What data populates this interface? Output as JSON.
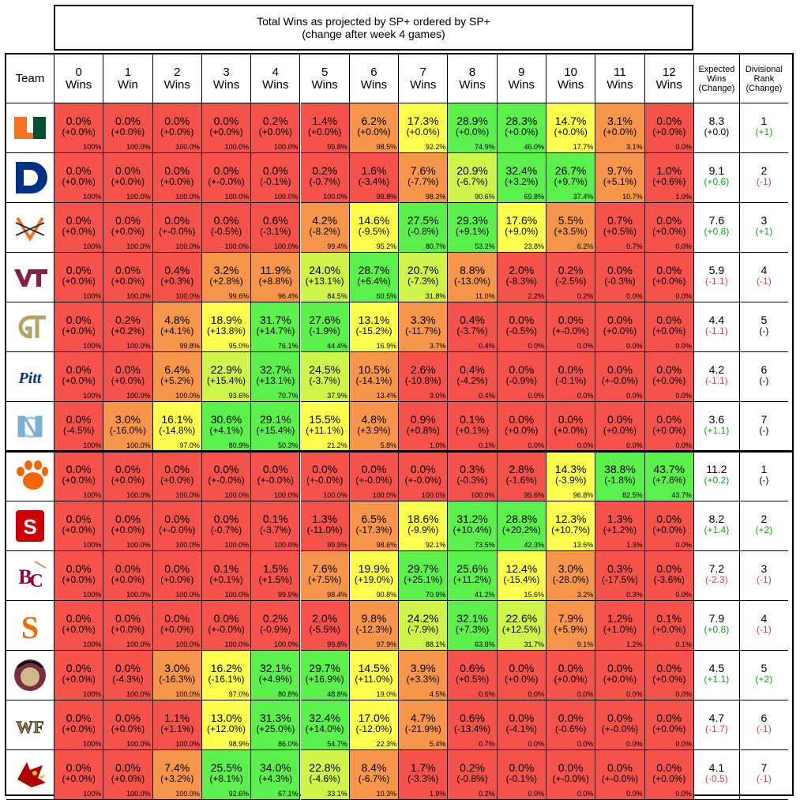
{
  "title": {
    "line1": "Total Wins as projected by SP+ ordered by SP+",
    "line2": "(change after week 4 games)"
  },
  "headers": {
    "team": "Team",
    "wins": [
      [
        "0",
        "Wins"
      ],
      [
        "1",
        "Win"
      ],
      [
        "2",
        "Wins"
      ],
      [
        "3",
        "Wins"
      ],
      [
        "4",
        "Wins"
      ],
      [
        "5",
        "Wins"
      ],
      [
        "6",
        "Wins"
      ],
      [
        "7",
        "Wins"
      ],
      [
        "8",
        "Wins"
      ],
      [
        "9",
        "Wins"
      ],
      [
        "10",
        "Wins"
      ],
      [
        "11",
        "Wins"
      ],
      [
        "12",
        "Wins"
      ]
    ],
    "expected": [
      "Expected",
      "Wins",
      "(Change)"
    ],
    "rank": [
      "Divisional",
      "Rank",
      "(Change)"
    ]
  },
  "colors": {
    "red": "#f4524b",
    "orange": "#f7964a",
    "yellow": "#ffff4d",
    "yellowgreen": "#cff54b",
    "green": "#5cf04d",
    "pos": "#1a9e1a",
    "neg": "#e04040"
  },
  "chart_data": {
    "type": "table",
    "title": "Total Wins as projected by SP+ ordered by SP+",
    "subtitle": "(change after week 4 games)",
    "columns": [
      "0",
      "1",
      "2",
      "3",
      "4",
      "5",
      "6",
      "7",
      "8",
      "9",
      "10",
      "11",
      "12"
    ],
    "rows": [
      {
        "team": "Miami",
        "icon": "miami-u-logo",
        "primary": "#f47321",
        "secondary": "#005030",
        "pct": [
          "0.0%",
          "0.0%",
          "0.0%",
          "0.0%",
          "0.2%",
          "1.4%",
          "6.2%",
          "17.3%",
          "28.9%",
          "28.3%",
          "14.7%",
          "3.1%",
          "0.0%"
        ],
        "chg": [
          "(+0.0%)",
          "(+0.0%)",
          "(+0.0%)",
          "(+0.0%)",
          "(+0.0%)",
          "(+0.0%)",
          "(+0.0%)",
          "(+0.0%)",
          "(+0.0%)",
          "(+0.0%)",
          "(+0.0%)",
          "(+0.0%)",
          "(+0.0%)"
        ],
        "cum": [
          "100%",
          "100.0%",
          "100.0%",
          "100.0%",
          "100.0%",
          "99.8%",
          "98.5%",
          "92.2%",
          "74.9%",
          "46.0%",
          "17.7%",
          "3.1%",
          "0.0%"
        ],
        "exp": "8.3",
        "exp_chg": "(+0.0)",
        "exp_sign": "neu",
        "rank": "1",
        "rank_chg": "(+1)",
        "rank_sign": "pos"
      },
      {
        "team": "Duke",
        "icon": "duke-d-logo",
        "primary": "#003087",
        "secondary": "#ffffff",
        "pct": [
          "0.0%",
          "0.0%",
          "0.0%",
          "0.0%",
          "0.0%",
          "0.2%",
          "1.6%",
          "7.6%",
          "20.9%",
          "32.4%",
          "26.7%",
          "9.7%",
          "1.0%"
        ],
        "chg": [
          "(+0.0%)",
          "(+0.0%)",
          "(+0.0%)",
          "(+-0.0%)",
          "(-0.1%)",
          "(-0.7%)",
          "(-3.4%)",
          "(-7.7%)",
          "(-6.7%)",
          "(+3.2%)",
          "(+9.7%)",
          "(+5.1%)",
          "(+0.6%)"
        ],
        "cum": [
          "100%",
          "100.0%",
          "100.0%",
          "100.0%",
          "100.0%",
          "100.0%",
          "99.8%",
          "98.3%",
          "90.6%",
          "69.8%",
          "37.4%",
          "10.7%",
          "1.0%"
        ],
        "exp": "9.1",
        "exp_chg": "(+0.6)",
        "exp_sign": "pos",
        "rank": "2",
        "rank_chg": "(-1)",
        "rank_sign": "neg"
      },
      {
        "team": "Virginia",
        "icon": "virginia-swords-logo",
        "primary": "#f47321",
        "secondary": "#232d4b",
        "pct": [
          "0.0%",
          "0.0%",
          "0.0%",
          "0.0%",
          "0.6%",
          "4.2%",
          "14.6%",
          "27.5%",
          "29.3%",
          "17.6%",
          "5.5%",
          "0.7%",
          "0.0%"
        ],
        "chg": [
          "(+0.0%)",
          "(+0.0%)",
          "(+-0.0%)",
          "(-0.5%)",
          "(-3.1%)",
          "(-8.2%)",
          "(-9.5%)",
          "(-0.8%)",
          "(+9.1%)",
          "(+9.0%)",
          "(+3.5%)",
          "(+0.5%)",
          "(+0.0%)"
        ],
        "cum": [
          "100%",
          "100.0%",
          "100.0%",
          "100.0%",
          "100.0%",
          "99.4%",
          "95.2%",
          "80.7%",
          "53.2%",
          "23.8%",
          "6.2%",
          "0.7%",
          "0.0%"
        ],
        "exp": "7.6",
        "exp_chg": "(+0.8)",
        "exp_sign": "pos",
        "rank": "3",
        "rank_chg": "(+1)",
        "rank_sign": "pos"
      },
      {
        "team": "Virginia Tech",
        "icon": "vt-logo",
        "primary": "#861f41",
        "secondary": "#e5751f",
        "pct": [
          "0.0%",
          "0.0%",
          "0.4%",
          "3.2%",
          "11.9%",
          "24.0%",
          "28.7%",
          "20.7%",
          "8.8%",
          "2.0%",
          "0.2%",
          "0.0%",
          "0.0%"
        ],
        "chg": [
          "(+0.0%)",
          "(+0.0%)",
          "(+0.3%)",
          "(+2.8%)",
          "(+8.8%)",
          "(+13.1%)",
          "(+6.4%)",
          "(-7.3%)",
          "(-13.0%)",
          "(-8.3%)",
          "(-2.5%)",
          "(-0.3%)",
          "(+0.0%)"
        ],
        "cum": [
          "100%",
          "100.0%",
          "100.0%",
          "99.6%",
          "96.4%",
          "84.5%",
          "60.5%",
          "31.8%",
          "11.0%",
          "2.2%",
          "0.2%",
          "0.0%",
          "0.0%"
        ],
        "exp": "5.9",
        "exp_chg": "(-1.1)",
        "exp_sign": "neg",
        "rank": "4",
        "rank_chg": "(-1)",
        "rank_sign": "neg"
      },
      {
        "team": "Georgia Tech",
        "icon": "gt-logo",
        "primary": "#b3a369",
        "secondary": "#003057",
        "pct": [
          "0.0%",
          "0.2%",
          "4.8%",
          "18.9%",
          "31.7%",
          "27.6%",
          "13.1%",
          "3.3%",
          "0.4%",
          "0.0%",
          "0.0%",
          "0.0%",
          "0.0%"
        ],
        "chg": [
          "(+0.0%)",
          "(+0.2%)",
          "(+4.1%)",
          "(+13.8%)",
          "(+14.7%)",
          "(-1.9%)",
          "(-15.2%)",
          "(-11.7%)",
          "(-3.7%)",
          "(-0.5%)",
          "(+-0.0%)",
          "(+0.0%)",
          "(+0.0%)"
        ],
        "cum": [
          "100%",
          "100.0%",
          "99.8%",
          "95.0%",
          "76.1%",
          "44.4%",
          "16.9%",
          "3.7%",
          "0.4%",
          "0.0%",
          "0.0%",
          "0.0%",
          "0.0%"
        ],
        "exp": "4.4",
        "exp_chg": "(-1.1)",
        "exp_sign": "neg",
        "rank": "5",
        "rank_chg": "(-)",
        "rank_sign": "neu"
      },
      {
        "team": "Pitt",
        "icon": "pitt-logo",
        "primary": "#003594",
        "secondary": "#ffb81c",
        "pct": [
          "0.0%",
          "0.0%",
          "6.4%",
          "22.9%",
          "32.7%",
          "24.5%",
          "10.5%",
          "2.6%",
          "0.4%",
          "0.0%",
          "0.0%",
          "0.0%",
          "0.0%"
        ],
        "chg": [
          "(+0.0%)",
          "(+0.0%)",
          "(+5.2%)",
          "(+15.4%)",
          "(+13.1%)",
          "(-3.7%)",
          "(-14.1%)",
          "(-10.8%)",
          "(-4.2%)",
          "(-0.9%)",
          "(-0.1%)",
          "(+-0.0%)",
          "(+0.0%)"
        ],
        "cum": [
          "100%",
          "100.0%",
          "100.0%",
          "93.6%",
          "70.7%",
          "37.9%",
          "13.4%",
          "3.0%",
          "0.4%",
          "0.0%",
          "0.0%",
          "0.0%",
          "0.0%"
        ],
        "exp": "4.2",
        "exp_chg": "(-1.1)",
        "exp_sign": "neg",
        "rank": "6",
        "rank_chg": "(-)",
        "rank_sign": "neu"
      },
      {
        "team": "North Carolina",
        "icon": "unc-logo",
        "primary": "#7bafd4",
        "secondary": "#ffffff",
        "pct": [
          "0.0%",
          "3.0%",
          "16.1%",
          "30.6%",
          "29.1%",
          "15.5%",
          "4.8%",
          "0.9%",
          "0.1%",
          "0.0%",
          "0.0%",
          "0.0%",
          "0.0%"
        ],
        "chg": [
          "(-4.5%)",
          "(-16.0%)",
          "(-14.8%)",
          "(+4.1%)",
          "(+15.4%)",
          "(+11.1%)",
          "(+3.9%)",
          "(+0.8%)",
          "(+0.1%)",
          "(+0.0%)",
          "(+0.0%)",
          "(+0.0%)",
          "(+0.0%)"
        ],
        "cum": [
          "100%",
          "100.0%",
          "97.0%",
          "80.9%",
          "50.3%",
          "21.2%",
          "5.8%",
          "1.0%",
          "0.1%",
          "0.0%",
          "0.0%",
          "0.0%",
          "0.0%"
        ],
        "exp": "3.6",
        "exp_chg": "(+1.1)",
        "exp_sign": "pos",
        "rank": "7",
        "rank_chg": "(-)",
        "rank_sign": "neu"
      },
      {
        "team": "Clemson",
        "icon": "clemson-paw-logo",
        "primary": "#f56600",
        "secondary": "#522d80",
        "pct": [
          "0.0%",
          "0.0%",
          "0.0%",
          "0.0%",
          "0.0%",
          "0.0%",
          "0.0%",
          "0.0%",
          "0.3%",
          "2.8%",
          "14.3%",
          "38.8%",
          "43.7%"
        ],
        "chg": [
          "(+0.0%)",
          "(+0.0%)",
          "(+0.0%)",
          "(+-0.0%)",
          "(+-0.0%)",
          "(+-0.0%)",
          "(+-0.0%)",
          "(+-0.0%)",
          "(-0.3%)",
          "(-1.6%)",
          "(-3.9%)",
          "(-1.8%)",
          "(+7.6%)"
        ],
        "cum": [
          "100%",
          "100.0%",
          "100.0%",
          "100.0%",
          "100.0%",
          "100.0%",
          "100.0%",
          "100.0%",
          "100.0%",
          "99.6%",
          "96.8%",
          "82.5%",
          "43.7%"
        ],
        "exp": "11.2",
        "exp_chg": "(+0.2)",
        "exp_sign": "pos",
        "rank": "1",
        "rank_chg": "(-)",
        "rank_sign": "neu"
      },
      {
        "team": "NC State",
        "icon": "ncstate-logo",
        "primary": "#cc0000",
        "secondary": "#ffffff",
        "pct": [
          "0.0%",
          "0.0%",
          "0.0%",
          "0.0%",
          "0.1%",
          "1.3%",
          "6.5%",
          "18.6%",
          "31.2%",
          "28.8%",
          "12.3%",
          "1.3%",
          "0.0%"
        ],
        "chg": [
          "(+0.0%)",
          "(+0.0%)",
          "(+-0.0%)",
          "(-0.7%)",
          "(-3.7%)",
          "(-11.0%)",
          "(-17.3%)",
          "(-9.9%)",
          "(+10.4%)",
          "(+20.2%)",
          "(+10.7%)",
          "(+1.2%)",
          "(+0.0%)"
        ],
        "cum": [
          "100%",
          "100.0%",
          "100.0%",
          "100.0%",
          "100.0%",
          "99.9%",
          "98.6%",
          "92.1%",
          "73.5%",
          "42.3%",
          "13.6%",
          "1.3%",
          "0.0%"
        ],
        "exp": "8.2",
        "exp_chg": "(+1.4)",
        "exp_sign": "pos",
        "rank": "2",
        "rank_chg": "(+2)",
        "rank_sign": "pos"
      },
      {
        "team": "Boston College",
        "icon": "bc-logo",
        "primary": "#98002e",
        "secondary": "#bc9b6a",
        "pct": [
          "0.0%",
          "0.0%",
          "0.0%",
          "0.1%",
          "1.5%",
          "7.6%",
          "19.9%",
          "29.7%",
          "25.6%",
          "12.4%",
          "3.0%",
          "0.3%",
          "0.0%"
        ],
        "chg": [
          "(+0.0%)",
          "(+0.0%)",
          "(+0.0%)",
          "(+0.1%)",
          "(+1.5%)",
          "(+7.5%)",
          "(+19.0%)",
          "(+25.1%)",
          "(+11.2%)",
          "(-15.4%)",
          "(-28.0%)",
          "(-17.5%)",
          "(-3.6%)"
        ],
        "cum": [
          "100%",
          "100.0%",
          "100.0%",
          "100.0%",
          "99.9%",
          "98.4%",
          "90.8%",
          "70.9%",
          "41.2%",
          "15.6%",
          "3.2%",
          "0.3%",
          "0.0%"
        ],
        "exp": "7.2",
        "exp_chg": "(-2.3)",
        "exp_sign": "neg",
        "rank": "3",
        "rank_chg": "(-1)",
        "rank_sign": "neg"
      },
      {
        "team": "Syracuse",
        "icon": "syracuse-logo",
        "primary": "#f76900",
        "secondary": "#ffffff",
        "pct": [
          "0.0%",
          "0.0%",
          "0.0%",
          "0.0%",
          "0.2%",
          "2.0%",
          "9.8%",
          "24.2%",
          "32.1%",
          "22.6%",
          "7.9%",
          "1.2%",
          "0.1%"
        ],
        "chg": [
          "(+0.0%)",
          "(+0.0%)",
          "(+0.0%)",
          "(+-0.0%)",
          "(-0.9%)",
          "(-5.5%)",
          "(-12.3%)",
          "(-7.9%)",
          "(+7.3%)",
          "(+12.5%)",
          "(+5.9%)",
          "(+1.0%)",
          "(+0.0%)"
        ],
        "cum": [
          "100%",
          "100.0%",
          "100.0%",
          "100.0%",
          "100.0%",
          "99.8%",
          "97.9%",
          "88.1%",
          "63.8%",
          "31.7%",
          "9.1%",
          "1.2%",
          "0.1%"
        ],
        "exp": "7.9",
        "exp_chg": "(+0.8)",
        "exp_sign": "pos",
        "rank": "4",
        "rank_chg": "(-1)",
        "rank_sign": "neg"
      },
      {
        "team": "Florida State",
        "icon": "fsu-seminole-logo",
        "primary": "#782f40",
        "secondary": "#ceb888",
        "pct": [
          "0.0%",
          "0.0%",
          "3.0%",
          "16.2%",
          "32.1%",
          "29.7%",
          "14.5%",
          "3.9%",
          "0.6%",
          "0.0%",
          "0.0%",
          "0.0%",
          "0.0%"
        ],
        "chg": [
          "(+0.0%)",
          "(-4.3%)",
          "(-16.3%)",
          "(-16.1%)",
          "(+4.9%)",
          "(+16.9%)",
          "(+11.0%)",
          "(+3.3%)",
          "(+0.5%)",
          "(+0.0%)",
          "(+0.0%)",
          "(+0.0%)",
          "(+0.0%)"
        ],
        "cum": [
          "100%",
          "100.0%",
          "100.0%",
          "97.0%",
          "80.8%",
          "48.8%",
          "19.0%",
          "4.5%",
          "0.6%",
          "0.0%",
          "0.0%",
          "0.0%",
          "0.0%"
        ],
        "exp": "4.5",
        "exp_chg": "(+1.1)",
        "exp_sign": "pos",
        "rank": "5",
        "rank_chg": "(+2)",
        "rank_sign": "pos"
      },
      {
        "team": "Wake Forest",
        "icon": "wf-logo",
        "primary": "#9e7e38",
        "secondary": "#000000",
        "pct": [
          "0.0%",
          "0.0%",
          "1.1%",
          "13.0%",
          "31.3%",
          "32.4%",
          "17.0%",
          "4.7%",
          "0.6%",
          "0.0%",
          "0.0%",
          "0.0%",
          "0.0%"
        ],
        "chg": [
          "(+0.0%)",
          "(+0.0%)",
          "(+1.1%)",
          "(+12.0%)",
          "(+25.0%)",
          "(+14.0%)",
          "(-12.0%)",
          "(-21.9%)",
          "(-13.4%)",
          "(-4.1%)",
          "(-0.6%)",
          "(+-0.0%)",
          "(+0.0%)"
        ],
        "cum": [
          "100%",
          "100.0%",
          "100.0%",
          "98.9%",
          "86.0%",
          "54.7%",
          "22.3%",
          "5.4%",
          "0.7%",
          "0.0%",
          "0.0%",
          "0.0%",
          "0.0%"
        ],
        "exp": "4.7",
        "exp_chg": "(-1.7)",
        "exp_sign": "neg",
        "rank": "6",
        "rank_chg": "(-1)",
        "rank_sign": "neg"
      },
      {
        "team": "Louisville",
        "icon": "louisville-cardinal-logo",
        "primary": "#ad0000",
        "secondary": "#fdb913",
        "pct": [
          "0.0%",
          "0.0%",
          "7.4%",
          "25.5%",
          "34.0%",
          "22.8%",
          "8.4%",
          "1.7%",
          "0.2%",
          "0.0%",
          "0.0%",
          "0.0%",
          "0.0%"
        ],
        "chg": [
          "(+0.0%)",
          "(+0.0%)",
          "(+3.2%)",
          "(+8.1%)",
          "(+4.3%)",
          "(-4.6%)",
          "(-6.7%)",
          "(-3.3%)",
          "(-0.8%)",
          "(-0.1%)",
          "(+-0.0%)",
          "(+-0.0%)",
          "(+0.0%)"
        ],
        "cum": [
          "100%",
          "100.0%",
          "100.0%",
          "92.6%",
          "67.1%",
          "33.1%",
          "10.3%",
          "1.9%",
          "0.2%",
          "0.0%",
          "0.0%",
          "0.0%",
          "0.0%"
        ],
        "exp": "4.1",
        "exp_chg": "(-0.5)",
        "exp_sign": "neg",
        "rank": "7",
        "rank_chg": "(-1)",
        "rank_sign": "neg"
      }
    ]
  }
}
